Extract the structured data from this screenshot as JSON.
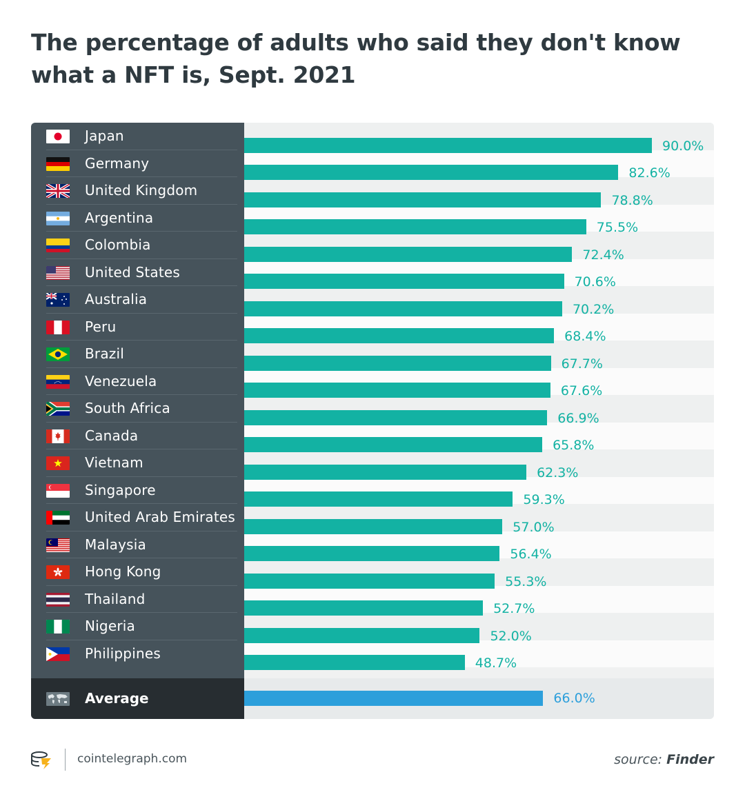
{
  "title": "The percentage of adults who said they don't know what a NFT is, Sept. 2021",
  "chart_data": {
    "type": "bar",
    "orientation": "horizontal",
    "title": "The percentage of adults who said they don't know what a NFT is, Sept. 2021",
    "categories": [
      "Japan",
      "Germany",
      "United Kingdom",
      "Argentina",
      "Colombia",
      "United States",
      "Australia",
      "Peru",
      "Brazil",
      "Venezuela",
      "South Africa",
      "Canada",
      "Vietnam",
      "Singapore",
      "United Arab Emirates",
      "Malaysia",
      "Hong Kong",
      "Thailand",
      "Nigeria",
      "Philippines"
    ],
    "values": [
      90.0,
      82.6,
      78.8,
      75.5,
      72.4,
      70.6,
      70.2,
      68.4,
      67.7,
      67.6,
      66.9,
      65.8,
      62.3,
      59.3,
      57.0,
      56.4,
      55.3,
      52.7,
      52.0,
      48.7
    ],
    "value_labels": [
      "90.0%",
      "82.6%",
      "78.8%",
      "75.5%",
      "72.4%",
      "70.6%",
      "70.2%",
      "68.4%",
      "67.7%",
      "67.6%",
      "66.9%",
      "65.8%",
      "62.3%",
      "59.3%",
      "57.0%",
      "56.4%",
      "55.3%",
      "52.7%",
      "52.0%",
      "48.7%"
    ],
    "flags": [
      "japan-flag-icon",
      "germany-flag-icon",
      "united-kingdom-flag-icon",
      "argentina-flag-icon",
      "colombia-flag-icon",
      "united-states-flag-icon",
      "australia-flag-icon",
      "peru-flag-icon",
      "brazil-flag-icon",
      "venezuela-flag-icon",
      "south-africa-flag-icon",
      "canada-flag-icon",
      "vietnam-flag-icon",
      "singapore-flag-icon",
      "uae-flag-icon",
      "malaysia-flag-icon",
      "hong-kong-flag-icon",
      "thailand-flag-icon",
      "nigeria-flag-icon",
      "philippines-flag-icon"
    ],
    "average": {
      "label": "Average",
      "value": 66.0,
      "value_label": "66.0%",
      "icon": "world-map-icon"
    },
    "xlim": [
      0,
      100
    ],
    "bar_color": "#13b2a3",
    "average_color": "#2c9fdb"
  },
  "footer": {
    "site": "cointelegraph.com",
    "source_prefix": "source:",
    "source_name": "Finder"
  }
}
